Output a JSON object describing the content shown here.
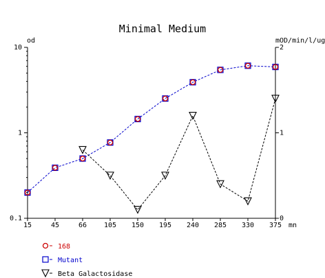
{
  "chart_data": {
    "type": "line",
    "title": "Minimal Medium",
    "xlabel": "mn",
    "ylabel_left": "od",
    "ylabel_right": "mOD/min/l/ug",
    "x_ticks": [
      15,
      45,
      66,
      105,
      150,
      195,
      240,
      285,
      330,
      375
    ],
    "y_left": {
      "scale": "log",
      "lim": [
        0.1,
        10
      ],
      "ticks": [
        "0.1",
        "1",
        "10"
      ],
      "tick_values": [
        0.1,
        1,
        10
      ]
    },
    "y_right": {
      "scale": "linear",
      "lim": [
        0,
        2
      ],
      "ticks": [
        "0",
        "1",
        "2"
      ],
      "tick_values": [
        0,
        1,
        2
      ]
    },
    "series": [
      {
        "name": "168",
        "axis": "left",
        "color": "#cc0000",
        "marker": "circle",
        "line": "none",
        "x": [
          15,
          45,
          66,
          105,
          150,
          195,
          240,
          285,
          330,
          375
        ],
        "values": [
          0.2,
          0.39,
          0.5,
          0.77,
          1.45,
          2.52,
          3.91,
          5.45,
          6.1,
          5.9
        ]
      },
      {
        "name": "Mutant",
        "axis": "left",
        "color": "#0000cc",
        "marker": "square",
        "line": "dashed",
        "x": [
          15,
          45,
          66,
          105,
          150,
          195,
          240,
          285,
          330,
          375
        ],
        "values": [
          0.2,
          0.39,
          0.5,
          0.77,
          1.45,
          2.52,
          3.91,
          5.45,
          6.1,
          5.9
        ]
      },
      {
        "name": "Beta Galactosidase",
        "axis": "right",
        "color": "#000000",
        "marker": "triangle-down",
        "line": "dashed",
        "x": [
          66,
          105,
          150,
          195,
          240,
          285,
          330,
          375
        ],
        "values": [
          0.8,
          0.5,
          0.1,
          0.5,
          1.2,
          0.4,
          0.2,
          1.4
        ]
      }
    ],
    "legend_position": "bottom-left"
  }
}
